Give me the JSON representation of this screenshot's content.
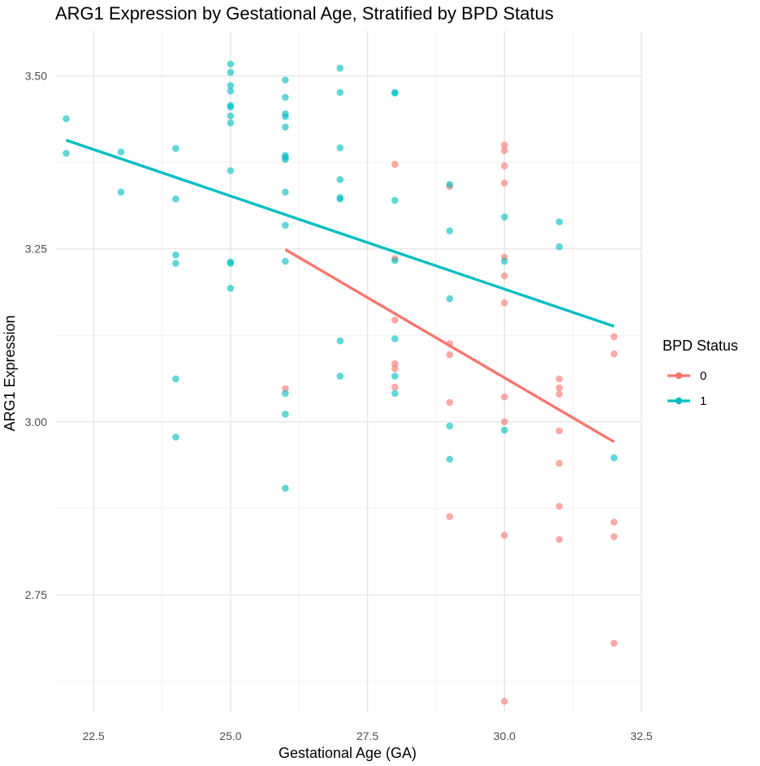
{
  "chart_data": {
    "type": "scatter",
    "title": "ARG1 Expression by Gestational Age, Stratified by BPD Status",
    "xlabel": "Gestational Age (GA)",
    "ylabel": "ARG1 Expression",
    "xlim": [
      21.8,
      32.5
    ],
    "ylim": [
      2.58,
      3.565
    ],
    "x_ticks": [
      22.5,
      25.0,
      27.5,
      30.0,
      32.5
    ],
    "x_tick_labels": [
      "22.5",
      "25.0",
      "27.5",
      "30.0",
      "32.5"
    ],
    "y_ticks": [
      2.75,
      3.0,
      3.25,
      3.5
    ],
    "y_tick_labels": [
      "2.75",
      "3.00",
      "3.25",
      "3.50"
    ],
    "grid": true,
    "legend": {
      "title": "BPD Status",
      "position": "right"
    },
    "series": [
      {
        "name": "0",
        "color": "#F8766D",
        "points": [
          [
            26,
            3.048
          ],
          [
            28,
            3.372
          ],
          [
            28,
            3.236
          ],
          [
            28,
            3.147
          ],
          [
            28,
            3.084
          ],
          [
            28,
            3.077
          ],
          [
            28,
            3.05
          ],
          [
            29,
            3.34
          ],
          [
            29,
            3.113
          ],
          [
            29,
            3.097
          ],
          [
            29,
            3.028
          ],
          [
            29,
            2.863
          ],
          [
            30,
            3.4
          ],
          [
            30,
            3.392
          ],
          [
            30,
            3.37
          ],
          [
            30,
            3.345
          ],
          [
            30,
            3.238
          ],
          [
            30,
            3.211
          ],
          [
            30,
            3.172
          ],
          [
            30,
            3.036
          ],
          [
            30,
            3.0
          ],
          [
            30,
            2.836
          ],
          [
            30,
            2.596
          ],
          [
            31,
            3.062
          ],
          [
            31,
            3.049
          ],
          [
            31,
            3.04
          ],
          [
            31,
            2.987
          ],
          [
            31,
            2.94
          ],
          [
            31,
            2.878
          ],
          [
            31,
            2.83
          ],
          [
            32,
            3.123
          ],
          [
            32,
            3.098
          ],
          [
            32,
            2.855
          ],
          [
            32,
            2.834
          ],
          [
            32,
            2.68
          ]
        ],
        "trend": [
          [
            26,
            3.249
          ],
          [
            32,
            2.971
          ]
        ]
      },
      {
        "name": "1",
        "color": "#00BFC4",
        "points": [
          [
            22,
            3.438
          ],
          [
            22,
            3.388
          ],
          [
            23,
            3.39
          ],
          [
            23,
            3.332
          ],
          [
            24,
            3.395
          ],
          [
            24,
            3.322
          ],
          [
            24,
            3.241
          ],
          [
            24,
            3.229
          ],
          [
            24,
            3.062
          ],
          [
            24,
            2.978
          ],
          [
            25,
            3.517
          ],
          [
            25,
            3.505
          ],
          [
            25,
            3.486
          ],
          [
            25,
            3.478
          ],
          [
            25,
            3.457
          ],
          [
            25,
            3.455
          ],
          [
            25,
            3.442
          ],
          [
            25,
            3.432
          ],
          [
            25,
            3.363
          ],
          [
            25,
            3.231
          ],
          [
            25,
            3.229
          ],
          [
            25,
            3.193
          ],
          [
            26,
            3.494
          ],
          [
            26,
            3.469
          ],
          [
            26,
            3.445
          ],
          [
            26,
            3.441
          ],
          [
            26,
            3.426
          ],
          [
            26,
            3.385
          ],
          [
            26,
            3.382
          ],
          [
            26,
            3.379
          ],
          [
            26,
            3.332
          ],
          [
            26,
            3.284
          ],
          [
            26,
            3.232
          ],
          [
            26,
            3.041
          ],
          [
            26,
            3.011
          ],
          [
            26,
            2.904
          ],
          [
            27,
            3.511
          ],
          [
            27,
            3.476
          ],
          [
            27,
            3.396
          ],
          [
            27,
            3.35
          ],
          [
            27,
            3.324
          ],
          [
            27,
            3.322
          ],
          [
            27,
            3.117
          ],
          [
            27,
            3.066
          ],
          [
            28,
            3.476
          ],
          [
            28,
            3.475
          ],
          [
            28,
            3.32
          ],
          [
            28,
            3.233
          ],
          [
            28,
            3.12
          ],
          [
            28,
            3.066
          ],
          [
            28,
            3.041
          ],
          [
            29,
            3.343
          ],
          [
            29,
            3.276
          ],
          [
            29,
            3.178
          ],
          [
            29,
            2.994
          ],
          [
            29,
            2.946
          ],
          [
            30,
            3.296
          ],
          [
            30,
            3.232
          ],
          [
            30,
            2.988
          ],
          [
            31,
            3.289
          ],
          [
            31,
            3.253
          ],
          [
            32,
            2.948
          ]
        ],
        "trend": [
          [
            22,
            3.407
          ],
          [
            32,
            3.138
          ]
        ]
      }
    ]
  }
}
